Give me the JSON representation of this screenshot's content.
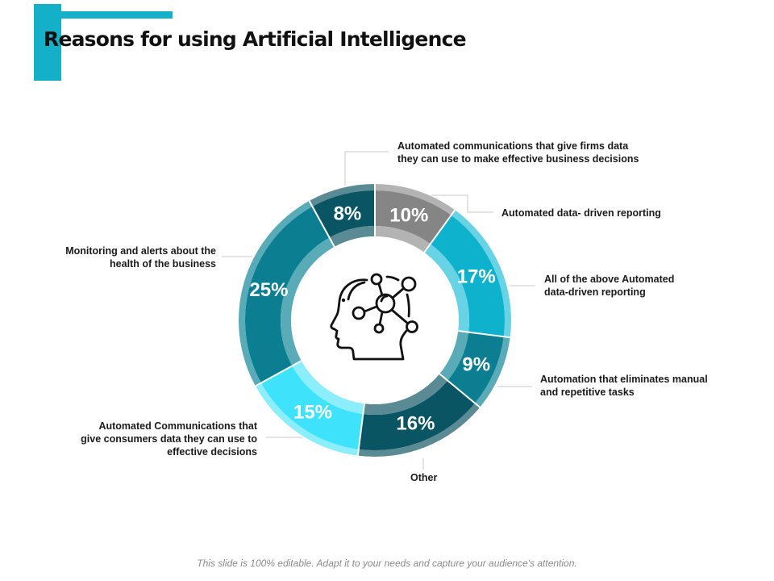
{
  "slide": {
    "title": "Reasons for using Artificial Intelligence",
    "footer": "This slide is 100% editable. Adapt it to your needs and capture your audience's attention.",
    "accent_color": "#14b0c8"
  },
  "chart_data": {
    "type": "pie",
    "subtype": "donut",
    "title": "Reasons for using Artificial Intelligence",
    "start_angle_deg": 0,
    "direction": "clockwise",
    "center_icon": "ai-head-network-icon",
    "slices": [
      {
        "label": "Automated data- driven reporting",
        "value": 10,
        "display": "10%",
        "color": "#858585",
        "rim": "#b3b3b3"
      },
      {
        "label": "All of the above Automated data-driven reporting",
        "value": 17,
        "display": "17%",
        "color": "#0fb2cc",
        "rim": "#67d3e4"
      },
      {
        "label": "Automation that eliminates manual and repetitive tasks",
        "value": 9,
        "display": "9%",
        "color": "#0b7f91",
        "rim": "#5aabb8"
      },
      {
        "label": "Other",
        "value": 16,
        "display": "16%",
        "color": "#0a5563",
        "rim": "#5a8b95"
      },
      {
        "label": "Automated Communications that give consumers data they can use to effective decisions",
        "value": 15,
        "display": "15%",
        "color": "#3ee3fb",
        "rim": "#8cedfb"
      },
      {
        "label": "Monitoring and alerts about the health of the business",
        "value": 25,
        "display": "25%",
        "color": "#0b7f91",
        "rim": "#5aabb8"
      },
      {
        "label": "Automated communications that give firms data they can use to make effective business decisions",
        "value": 8,
        "display": "8%",
        "color": "#0a5563",
        "rim": "#5a8b95"
      }
    ]
  },
  "labels": {
    "firms": "Automated communications that give firms data they can use to make effective business decisions",
    "firms_l1": "Automated communications that give firms data",
    "firms_l2": "they can use to make effective business  decisions",
    "reporting": "Automated data- driven reporting",
    "all_above_l1": "All of the above Automated",
    "all_above_l2": "data-driven reporting",
    "manual_l1": "Automation that eliminates manual",
    "manual_l2": "and repetitive tasks",
    "other": "Other",
    "consumers_l1": "Automated Communications that",
    "consumers_l2": "give consumers  data they can use to",
    "consumers_l3": "effective decisions",
    "monitoring_l1": "Monitoring and alerts about the",
    "monitoring_l2": "health of the business"
  }
}
